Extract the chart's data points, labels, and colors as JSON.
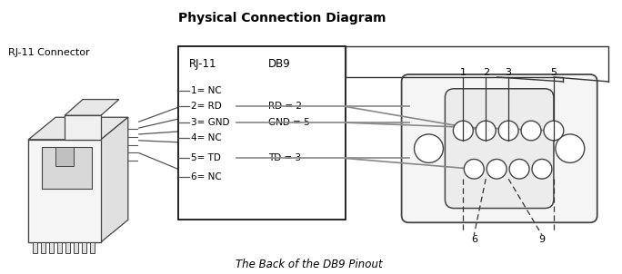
{
  "title": "Physical Connection Diagram",
  "title_fontsize": 10,
  "title_fontweight": "bold",
  "rj11_label": "RJ-11 Connector",
  "rj11_col_label": "RJ-11",
  "db9_col_label": "DB9",
  "rj11_pins": [
    "1= NC",
    "2= RD",
    "3= GND",
    "4= NC",
    "5= TD",
    "6= NC"
  ],
  "db9_mappings": [
    "RD = 2",
    "GND = 5",
    "TD = 3"
  ],
  "pin_numbers_top": [
    "1",
    "2",
    "3",
    "5"
  ],
  "pin_numbers_bottom": [
    "6",
    "9"
  ],
  "bottom_label": "The Back of the DB9 Pinout",
  "bg_color": "#ffffff",
  "text_color": "#000000",
  "gray_wire_color": "#888888",
  "dark_line_color": "#333333",
  "connector_edge": "#444444",
  "connector_fill": "#f0f0f0",
  "pin_fill": "#ffffff"
}
